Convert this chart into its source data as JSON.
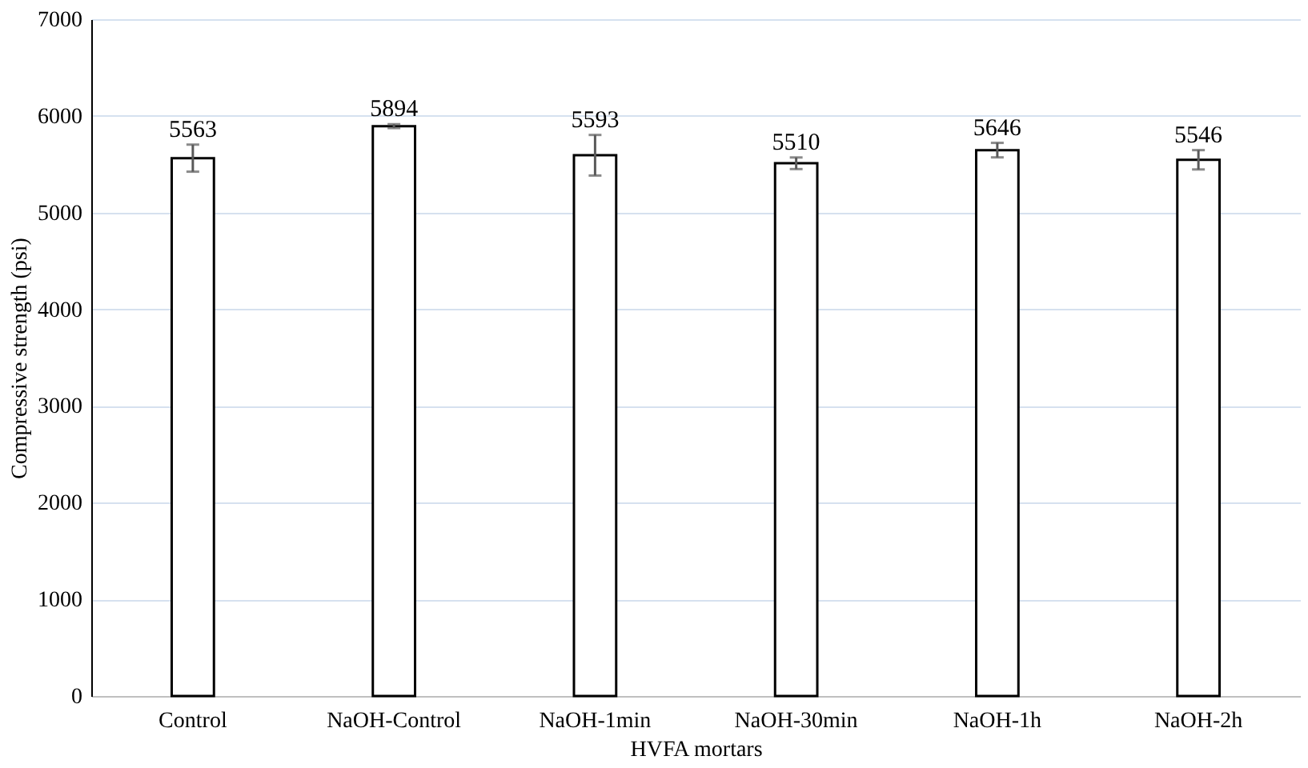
{
  "chart_data": {
    "type": "bar",
    "xlabel": "HVFA mortars",
    "ylabel": "Compressive strength (psi)",
    "categories": [
      "Control",
      "NaOH-Control",
      "NaOH-1min",
      "NaOH-30min",
      "NaOH-1h",
      "NaOH-2h"
    ],
    "values": [
      5563,
      5894,
      5593,
      5510,
      5646,
      5546
    ],
    "errors": [
      140,
      20,
      210,
      60,
      75,
      100
    ],
    "color": "#ffffff",
    "data_labels": true,
    "ylim": [
      0,
      7000
    ],
    "yticks": [
      0,
      1000,
      2000,
      3000,
      4000,
      5000,
      6000,
      7000
    ],
    "grid": "y"
  }
}
